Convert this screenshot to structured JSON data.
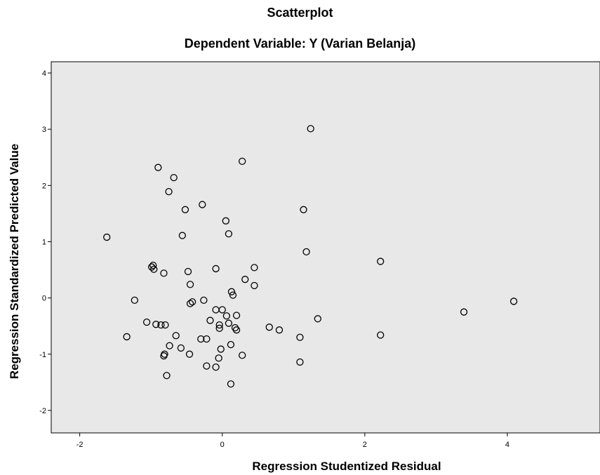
{
  "chart_data": {
    "type": "scatter",
    "title": "Scatterplot",
    "subtitle": "Dependent Variable: Y (Varian Belanja)",
    "xlabel": "Regression Studentized Residual",
    "ylabel": "Regression Standardized Predicted Value",
    "xlim": [
      -2.4,
      5.3
    ],
    "ylim": [
      -2.4,
      4.2
    ],
    "xticks": [
      "-2",
      "0",
      "2",
      "4"
    ],
    "yticks": [
      "-2",
      "-1",
      "0",
      "1",
      "2",
      "3",
      "4"
    ],
    "grid": false,
    "background_color": "#e8e8e8",
    "marker_color": "#000000",
    "points": [
      {
        "x": -1.62,
        "y": 1.08
      },
      {
        "x": -0.9,
        "y": 2.32
      },
      {
        "x": -0.68,
        "y": 2.14
      },
      {
        "x": -0.75,
        "y": 1.89
      },
      {
        "x": -0.52,
        "y": 1.57
      },
      {
        "x": -0.28,
        "y": 1.66
      },
      {
        "x": 0.28,
        "y": 2.43
      },
      {
        "x": 1.24,
        "y": 3.01
      },
      {
        "x": 1.14,
        "y": 1.57
      },
      {
        "x": 0.05,
        "y": 1.37
      },
      {
        "x": -0.56,
        "y": 1.11
      },
      {
        "x": 0.09,
        "y": 1.14
      },
      {
        "x": 1.18,
        "y": 0.82
      },
      {
        "x": 2.22,
        "y": 0.65
      },
      {
        "x": -0.99,
        "y": 0.55
      },
      {
        "x": -0.97,
        "y": 0.58
      },
      {
        "x": -0.96,
        "y": 0.51
      },
      {
        "x": -0.82,
        "y": 0.44
      },
      {
        "x": -0.48,
        "y": 0.47
      },
      {
        "x": -0.09,
        "y": 0.52
      },
      {
        "x": 0.45,
        "y": 0.54
      },
      {
        "x": 0.32,
        "y": 0.33
      },
      {
        "x": 0.45,
        "y": 0.22
      },
      {
        "x": 0.13,
        "y": 0.11
      },
      {
        "x": 0.15,
        "y": 0.05
      },
      {
        "x": -0.45,
        "y": 0.24
      },
      {
        "x": -1.23,
        "y": -0.04
      },
      {
        "x": -0.45,
        "y": -0.1
      },
      {
        "x": -0.42,
        "y": -0.07
      },
      {
        "x": -0.26,
        "y": -0.04
      },
      {
        "x": -0.09,
        "y": -0.21
      },
      {
        "x": 0.0,
        "y": -0.21
      },
      {
        "x": 0.06,
        "y": -0.32
      },
      {
        "x": 0.2,
        "y": -0.31
      },
      {
        "x": -0.17,
        "y": -0.4
      },
      {
        "x": 0.09,
        "y": -0.45
      },
      {
        "x": -0.04,
        "y": -0.48
      },
      {
        "x": -0.04,
        "y": -0.54
      },
      {
        "x": 0.18,
        "y": -0.53
      },
      {
        "x": 0.2,
        "y": -0.57
      },
      {
        "x": 0.66,
        "y": -0.52
      },
      {
        "x": 0.8,
        "y": -0.57
      },
      {
        "x": 1.34,
        "y": -0.37
      },
      {
        "x": -1.06,
        "y": -0.43
      },
      {
        "x": -0.93,
        "y": -0.47
      },
      {
        "x": -0.86,
        "y": -0.48
      },
      {
        "x": -0.8,
        "y": -0.48
      },
      {
        "x": -1.34,
        "y": -0.69
      },
      {
        "x": -0.65,
        "y": -0.67
      },
      {
        "x": -0.3,
        "y": -0.73
      },
      {
        "x": -0.22,
        "y": -0.73
      },
      {
        "x": -0.74,
        "y": -0.85
      },
      {
        "x": -0.58,
        "y": -0.89
      },
      {
        "x": -0.46,
        "y": -1.0
      },
      {
        "x": -0.81,
        "y": -1.0
      },
      {
        "x": -0.82,
        "y": -1.03
      },
      {
        "x": -0.02,
        "y": -0.91
      },
      {
        "x": 0.12,
        "y": -0.83
      },
      {
        "x": 0.28,
        "y": -1.02
      },
      {
        "x": -0.05,
        "y": -1.07
      },
      {
        "x": -0.78,
        "y": -1.38
      },
      {
        "x": -0.22,
        "y": -1.21
      },
      {
        "x": -0.09,
        "y": -1.23
      },
      {
        "x": 0.12,
        "y": -1.53
      },
      {
        "x": 1.09,
        "y": -0.7
      },
      {
        "x": 1.09,
        "y": -1.14
      },
      {
        "x": 2.22,
        "y": -0.66
      },
      {
        "x": 3.39,
        "y": -0.25
      },
      {
        "x": 4.09,
        "y": -0.06
      }
    ]
  }
}
